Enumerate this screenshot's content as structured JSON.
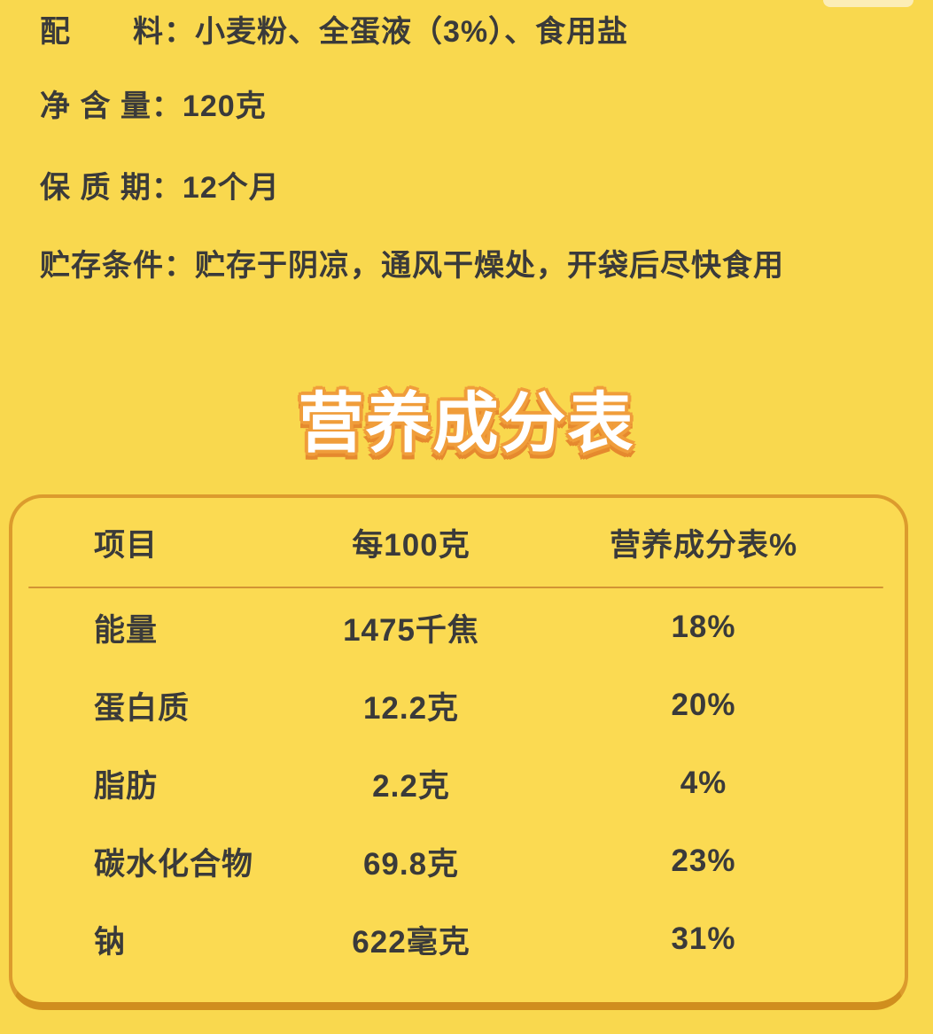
{
  "page": {
    "background_color": "#F9D84E",
    "text_color": "#3A3A3A"
  },
  "decor": {
    "top_notch_color": "#FCEFC2"
  },
  "product_info": {
    "lines": [
      {
        "label": "配　　料：",
        "value": "小麦粉、全蛋液（3%）、食用盐"
      },
      {
        "label": "净 含 量：",
        "value": "120克"
      },
      {
        "label": "保 质 期：",
        "value": "12个月"
      },
      {
        "label": "贮存条件：",
        "value": "贮存于阴凉，通风干燥处，开袋后尽快食用"
      }
    ]
  },
  "nutrition": {
    "title": "营养成分表",
    "title_color": "#FFFFFF",
    "title_outline_color": "#F09D3A",
    "table": {
      "background_color": "#FBDA52",
      "border_color": "#DC9B2D",
      "border_bottom_color": "#D08E1E",
      "columns": [
        "项目",
        "每100克",
        "营养成分表%"
      ],
      "rows": [
        {
          "item": "能量",
          "per_100g": "1475千焦",
          "nrv": "18%"
        },
        {
          "item": "蛋白质",
          "per_100g": "12.2克",
          "nrv": "20%"
        },
        {
          "item": "脂肪",
          "per_100g": "2.2克",
          "nrv": "4%"
        },
        {
          "item": "碳水化合物",
          "per_100g": "69.8克",
          "nrv": "23%"
        },
        {
          "item": "钠",
          "per_100g": "622毫克",
          "nrv": "31%"
        }
      ]
    }
  }
}
